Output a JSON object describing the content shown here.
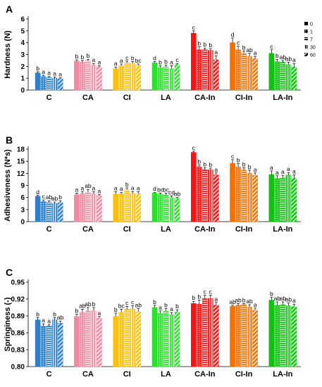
{
  "figure": {
    "legend_labels": [
      "0",
      "1",
      "7",
      "30",
      "60"
    ],
    "legend_placement": "right"
  },
  "chart_data": [
    {
      "type": "bar",
      "panel_label": "A",
      "ylabel": "Hardness (N)",
      "ylim": [
        0,
        6
      ],
      "yticks": [
        0,
        1,
        2,
        3,
        4,
        5,
        6
      ],
      "grid": false,
      "categories": [
        "C",
        "CA",
        "CI",
        "LA",
        "CA-In",
        "CI-In",
        "LA-In"
      ],
      "colors": [
        "#2f7fc8",
        "#f08aa0",
        "#ffc000",
        "#2ee02e",
        "#ff1010",
        "#f27000",
        "#12c012"
      ],
      "series": [
        {
          "name": "0",
          "values": [
            1.45,
            2.45,
            1.8,
            2.3,
            4.8,
            4.0,
            3.1
          ],
          "errors": [
            0.1,
            0.1,
            0.15,
            0.1,
            0.2,
            0.4,
            0.3
          ],
          "letters": [
            "b",
            "b",
            "a",
            "d",
            "c",
            "d",
            "c"
          ]
        },
        {
          "name": "1",
          "values": [
            1.15,
            2.35,
            2.05,
            1.9,
            3.4,
            3.4,
            2.4
          ],
          "errors": [
            0.1,
            0.15,
            0.15,
            0.15,
            0.25,
            0.3,
            0.2
          ],
          "letters": [
            "a",
            "b",
            "a",
            "b",
            "b",
            "c",
            "b"
          ]
        },
        {
          "name": "7",
          "values": [
            1.05,
            2.45,
            2.3,
            1.95,
            3.4,
            3.1,
            2.35
          ],
          "errors": [
            0.1,
            0.15,
            0.15,
            0.15,
            0.15,
            0.2,
            0.15
          ],
          "letters": [
            "a",
            "b",
            "c",
            "b",
            "b",
            "b",
            "ab"
          ]
        },
        {
          "name": "30",
          "values": [
            1.0,
            2.1,
            2.25,
            1.8,
            3.35,
            2.85,
            2.15
          ],
          "errors": [
            0.1,
            0.15,
            0.15,
            0.25,
            0.15,
            0.25,
            0.2
          ],
          "letters": [
            "a",
            "a",
            "b",
            "a",
            "b",
            "ab",
            "ab"
          ]
        },
        {
          "name": "60",
          "values": [
            0.95,
            1.95,
            2.05,
            2.15,
            2.55,
            2.65,
            1.95
          ],
          "errors": [
            0.1,
            0.1,
            0.15,
            0.1,
            0.35,
            0.2,
            0.3
          ],
          "letters": [
            "a",
            "a",
            "bc",
            "c",
            "a",
            "a",
            "a"
          ]
        }
      ]
    },
    {
      "type": "bar",
      "panel_label": "B",
      "ylabel": "Adhesiveness (N*s)",
      "ylim": [
        0,
        18
      ],
      "yticks": [
        0,
        3,
        6,
        9,
        12,
        15,
        18
      ],
      "grid": false,
      "categories": [
        "C",
        "CA",
        "CI",
        "LA",
        "CA-In",
        "CI-In",
        "LA-In"
      ],
      "colors": [
        "#2f7fc8",
        "#f08aa0",
        "#ffc000",
        "#2ee02e",
        "#ff1010",
        "#f27000",
        "#12c012"
      ],
      "series": [
        {
          "name": "0",
          "values": [
            6.3,
            6.7,
            6.8,
            7.1,
            17.2,
            14.5,
            11.7
          ],
          "errors": [
            0.2,
            0.4,
            0.6,
            0.2,
            0.3,
            0.9,
            0.9
          ],
          "letters": [
            "d",
            "a",
            "a",
            "d",
            "c",
            "c",
            "a"
          ]
        },
        {
          "name": "1",
          "values": [
            5.0,
            6.9,
            6.9,
            6.8,
            13.6,
            13.6,
            10.7
          ],
          "errors": [
            0.4,
            0.5,
            0.4,
            0.3,
            0.5,
            0.8,
            0.7
          ],
          "letters": [
            "c",
            "a",
            "a",
            "bc",
            "b",
            "b",
            "a"
          ]
        },
        {
          "name": "7",
          "values": [
            4.8,
            7.3,
            7.9,
            6.6,
            12.9,
            12.8,
            10.9
          ],
          "errors": [
            0.4,
            0.7,
            0.5,
            0.5,
            0.5,
            0.6,
            0.6
          ],
          "letters": [
            "ab",
            "ab",
            "b",
            "bc",
            "b",
            "b",
            "a"
          ]
        },
        {
          "name": "30",
          "values": [
            4.5,
            6.9,
            7.0,
            6.0,
            12.9,
            12.0,
            11.6
          ],
          "errors": [
            0.4,
            0.5,
            0.5,
            0.4,
            0.4,
            0.8,
            0.6
          ],
          "letters": [
            "ab",
            "a",
            "a",
            "cd",
            "b",
            "b",
            "a"
          ]
        },
        {
          "name": "60",
          "values": [
            4.7,
            6.4,
            6.9,
            5.7,
            11.6,
            11.5,
            10.8
          ],
          "errors": [
            0.5,
            0.3,
            0.5,
            0.3,
            0.5,
            0.6,
            0.8
          ],
          "letters": [
            "b",
            "a",
            "a",
            "ab",
            "a",
            "a",
            "a"
          ]
        }
      ]
    },
    {
      "type": "bar",
      "panel_label": "C",
      "ylabel": "Springiness (-)",
      "ylim": [
        0.8,
        0.95
      ],
      "yticks": [
        0.8,
        0.83,
        0.86,
        0.89,
        0.92,
        0.95
      ],
      "grid": false,
      "categories": [
        "C",
        "CA",
        "CI",
        "LA",
        "CA-In",
        "CI-In",
        "LA-In"
      ],
      "colors": [
        "#2f7fc8",
        "#f08aa0",
        "#ffc000",
        "#2ee02e",
        "#ff1010",
        "#f27000",
        "#12c012"
      ],
      "series": [
        {
          "name": "0",
          "values": [
            0.883,
            0.889,
            0.889,
            0.905,
            0.912,
            0.907,
            0.918
          ],
          "errors": [
            0.004,
            0.004,
            0.006,
            0.004,
            0.004,
            0.002,
            0.005
          ],
          "letters": [
            "b",
            "b",
            "b",
            "b",
            "b",
            "ab",
            "b"
          ]
        },
        {
          "name": "1",
          "values": [
            0.872,
            0.896,
            0.896,
            0.895,
            0.911,
            0.909,
            0.909
          ],
          "errors": [
            0.004,
            0.006,
            0.006,
            0.004,
            0.007,
            0.003,
            0.006
          ],
          "letters": [
            "a",
            "ab",
            "bc",
            "a",
            "b",
            "ab",
            "ab"
          ]
        },
        {
          "name": "7",
          "values": [
            0.872,
            0.899,
            0.902,
            0.899,
            0.921,
            0.91,
            0.91
          ],
          "errors": [
            0.003,
            0.006,
            0.005,
            0.004,
            0.006,
            0.002,
            0.005
          ],
          "letters": [
            "a",
            "ab",
            "c",
            "b",
            "c",
            "b",
            "ab"
          ]
        },
        {
          "name": "30",
          "values": [
            0.883,
            0.899,
            0.902,
            0.892,
            0.921,
            0.906,
            0.908
          ],
          "errors": [
            0.004,
            0.006,
            0.006,
            0.004,
            0.006,
            0.004,
            0.005
          ],
          "letters": [
            "b",
            "b",
            "c",
            "a",
            "c",
            "ab",
            "ab"
          ]
        },
        {
          "name": "60",
          "values": [
            0.877,
            0.886,
            0.897,
            0.897,
            0.909,
            0.9,
            0.906
          ],
          "errors": [
            0.004,
            0.003,
            0.006,
            0.004,
            0.005,
            0.004,
            0.005
          ],
          "letters": [
            "ab",
            "a",
            "ab",
            "b",
            "a",
            "a",
            "a"
          ]
        }
      ]
    }
  ]
}
